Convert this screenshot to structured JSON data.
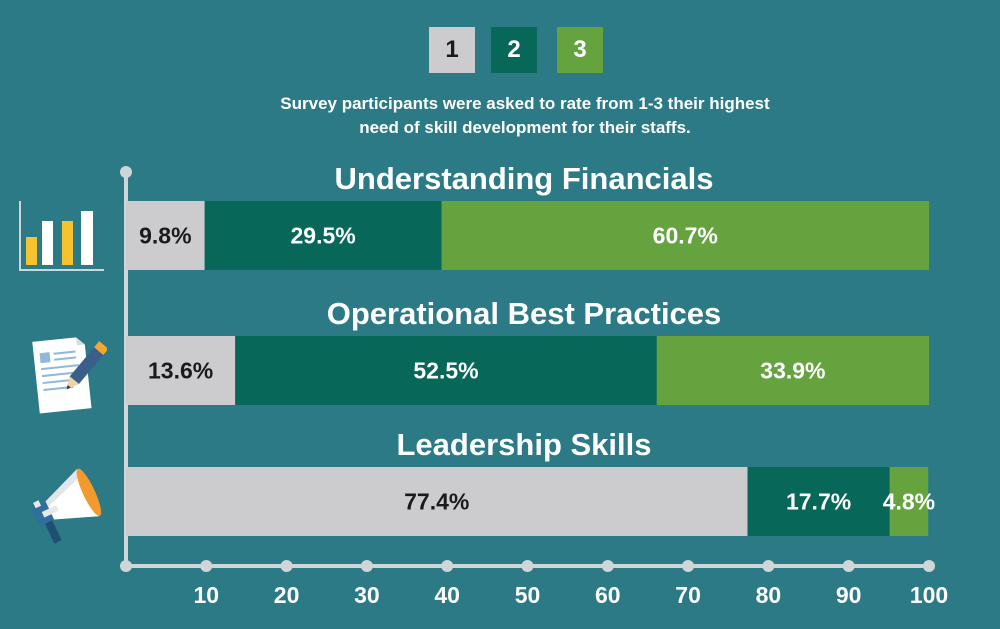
{
  "legend": [
    {
      "label": "1",
      "color": "#cccbce",
      "text_color": "#1a1a1a"
    },
    {
      "label": "2",
      "color": "#07685a",
      "text_color": "#ffffff"
    },
    {
      "label": "3",
      "color": "#65a33f",
      "text_color": "#ffffff"
    }
  ],
  "subtitle_line1": "Survey participants were asked to rate from 1-3 their highest",
  "subtitle_line2": "need of skill development for their staffs.",
  "icons": [
    "bar-chart-icon",
    "document-pencil-icon",
    "megaphone-icon"
  ],
  "chart_data": {
    "type": "bar",
    "orientation": "horizontal",
    "stacked": true,
    "categories": [
      "Understanding Financials",
      "Operational Best Practices",
      "Leadership Skills"
    ],
    "series": [
      {
        "name": "1",
        "values": [
          9.8,
          13.6,
          77.4
        ],
        "labels": [
          "9.8%",
          "13.6%",
          "77.4%"
        ],
        "color": "#cccbce"
      },
      {
        "name": "2",
        "values": [
          29.5,
          52.5,
          17.7
        ],
        "labels": [
          "29.5%",
          "52.5%",
          "17.7%"
        ],
        "color": "#07685a"
      },
      {
        "name": "3",
        "values": [
          60.7,
          33.9,
          4.8
        ],
        "labels": [
          "60.7%",
          "33.9%",
          "4.8%"
        ],
        "color": "#65a33f"
      }
    ],
    "xlim": [
      0,
      100
    ],
    "xticks": [
      "10",
      "20",
      "30",
      "40",
      "50",
      "60",
      "70",
      "80",
      "90",
      "100"
    ],
    "legend_position": "top-center",
    "grid": false
  }
}
